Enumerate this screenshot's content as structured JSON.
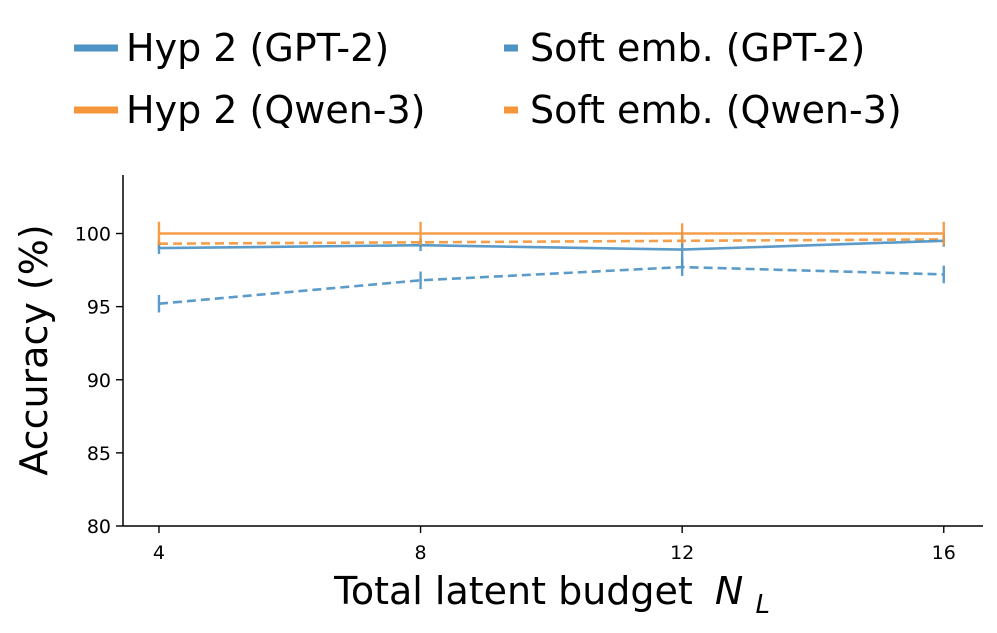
{
  "chart_data": {
    "type": "line",
    "title": "",
    "xlabel": "Total latent budget",
    "xlabel_symbol": "N",
    "xlabel_subscript": "L",
    "ylabel": "Accuracy (%)",
    "x": [
      4,
      8,
      12,
      16
    ],
    "xticks": [
      "4",
      "8",
      "12",
      "16"
    ],
    "yticks": [
      "80",
      "85",
      "90",
      "95",
      "100"
    ],
    "xlim": [
      3.45,
      16.6
    ],
    "ylim": [
      80,
      104
    ],
    "grid": false,
    "legend_position": "top",
    "series": [
      {
        "name": "Hyp 2 (GPT-2)",
        "color": "#4e93c4",
        "linestyle": "solid",
        "values": [
          99.0,
          99.2,
          98.9,
          99.5
        ],
        "errors": [
          0.4,
          0.4,
          1.2,
          0.4
        ]
      },
      {
        "name": "Hyp 2 (Qwen-3)",
        "color": "#f5963a",
        "linestyle": "solid",
        "values": [
          100.0,
          100.0,
          100.0,
          100.0
        ],
        "errors": [
          0.8,
          0.8,
          0.7,
          0.8
        ]
      },
      {
        "name": "Soft emb. (GPT-2)",
        "color": "#4e93c4",
        "linestyle": "dashed",
        "values": [
          95.2,
          96.8,
          97.7,
          97.2
        ],
        "errors": [
          0.6,
          0.6,
          0.6,
          0.6
        ]
      },
      {
        "name": "Soft emb. (Qwen-3)",
        "color": "#f5963a",
        "linestyle": "dashed",
        "values": [
          99.3,
          99.4,
          99.5,
          99.6
        ],
        "errors": [
          0.3,
          0.3,
          0.3,
          0.3
        ]
      }
    ]
  }
}
